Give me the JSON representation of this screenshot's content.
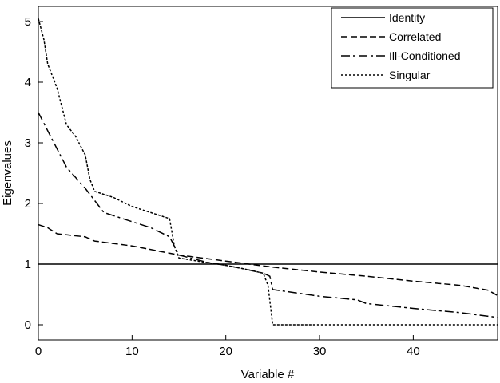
{
  "chart_data": {
    "type": "line",
    "title": "",
    "xlabel": "Variable #",
    "ylabel": "Eigenvalues",
    "xlim": [
      0,
      49
    ],
    "ylim": [
      -0.25,
      5.25
    ],
    "xticks": [
      0,
      10,
      20,
      30,
      40
    ],
    "yticks": [
      0,
      1,
      2,
      3,
      4,
      5
    ],
    "grid": false,
    "legend_position": "top-right",
    "series": [
      {
        "name": "Identity",
        "dash": "solid",
        "x": [
          0,
          49
        ],
        "y": [
          1.0,
          1.0
        ]
      },
      {
        "name": "Correlated",
        "dash": "dashed",
        "x": [
          0,
          1,
          2,
          5,
          6,
          10,
          15,
          20,
          25,
          30,
          35,
          40,
          45,
          48,
          49
        ],
        "y": [
          1.65,
          1.6,
          1.5,
          1.45,
          1.38,
          1.3,
          1.15,
          1.05,
          0.95,
          0.87,
          0.8,
          0.72,
          0.65,
          0.57,
          0.48
        ]
      },
      {
        "name": "Ill-Conditioned",
        "dash": "dashdot",
        "x": [
          0,
          1,
          3,
          5,
          7,
          8,
          10,
          12,
          14,
          15,
          18,
          20,
          22,
          24,
          24.7,
          25,
          30,
          34,
          35,
          40,
          45,
          49
        ],
        "y": [
          3.5,
          3.2,
          2.6,
          2.25,
          1.85,
          1.8,
          1.7,
          1.6,
          1.45,
          1.15,
          1.03,
          0.98,
          0.92,
          0.85,
          0.8,
          0.58,
          0.47,
          0.41,
          0.35,
          0.27,
          0.2,
          0.12
        ]
      },
      {
        "name": "Singular",
        "dash": "dotted",
        "x": [
          0,
          0.6,
          1,
          2,
          3,
          4,
          5,
          5.5,
          6,
          8,
          10,
          12,
          14,
          14.5,
          15,
          17,
          20,
          22,
          24,
          24.5,
          25,
          49
        ],
        "y": [
          5.05,
          4.7,
          4.3,
          3.9,
          3.3,
          3.1,
          2.8,
          2.4,
          2.2,
          2.1,
          1.95,
          1.85,
          1.75,
          1.3,
          1.1,
          1.05,
          0.98,
          0.92,
          0.85,
          0.65,
          0.0,
          0.0
        ]
      }
    ]
  }
}
